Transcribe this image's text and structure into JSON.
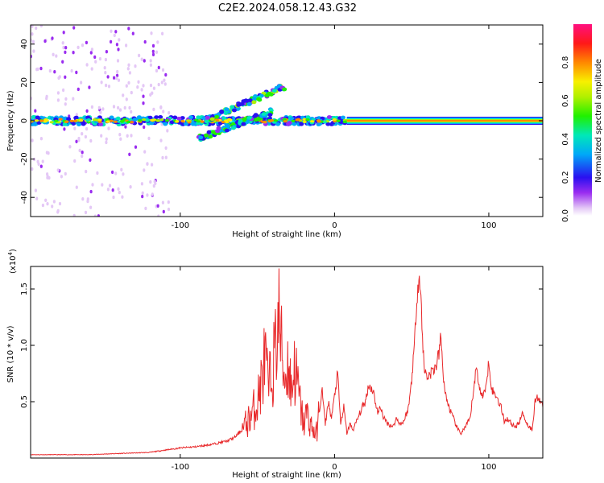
{
  "title": "C2E2.2024.058.12.43.G32",
  "chart_data": [
    {
      "type": "heatmap",
      "xlabel": "Height of straight line (km)",
      "ylabel": "Frequency (Hz)",
      "xlim": [
        -197,
        135
      ],
      "ylim": [
        -50,
        50
      ],
      "xticks": [
        -100,
        0,
        100
      ],
      "xticklabels": [
        "-100",
        "0",
        "100"
      ],
      "yticks": [
        -40,
        -20,
        0,
        20,
        40
      ],
      "yticklabels": [
        "-40",
        "-20",
        "0",
        "20",
        "40"
      ],
      "grid": false,
      "colorbar": {
        "label": "Normalized spectral amplitude",
        "range": [
          0,
          1
        ],
        "ticks": [
          0.0,
          0.2,
          0.4,
          0.6,
          0.8
        ],
        "ticklabels": [
          "0.0",
          "0.2",
          "0.4",
          "0.6",
          "0.8"
        ]
      },
      "features": [
        {
          "name": "main_band",
          "x_range": [
            -197,
            8
          ],
          "freq": 0,
          "amplitude": 0.55
        },
        {
          "name": "upper_branch",
          "x": [
            -85,
            -32
          ],
          "freq": [
            0,
            18
          ],
          "amplitude": 0.45
        },
        {
          "name": "lower_branch",
          "x": [
            -88,
            -40
          ],
          "freq": [
            -9,
            5
          ],
          "amplitude": 0.4
        },
        {
          "name": "mid_band",
          "x_range": [
            -35,
            8
          ],
          "freq": 0,
          "amplitude": 0.6
        },
        {
          "name": "carrier_line",
          "x_range": [
            8,
            135
          ],
          "freq": 0,
          "amplitude": 0.9
        }
      ]
    },
    {
      "type": "line",
      "xlabel": "Height of straight line (km)",
      "ylabel": "SNR (10 * v/v)",
      "yscale_label": "(x10",
      "yscale_exp": "4",
      "yscale_close": ")",
      "xlim": [
        -197,
        135
      ],
      "ylim": [
        0,
        1.7
      ],
      "xticks": [
        -100,
        0,
        100
      ],
      "xticklabels": [
        "-100",
        "0",
        "100"
      ],
      "yticks": [
        0.5,
        1.0,
        1.5
      ],
      "yticklabels": [
        "0.5",
        "1.0",
        "1.5"
      ],
      "grid": false,
      "series_color": "#e8282a",
      "x": [
        -197,
        -180,
        -160,
        -140,
        -120,
        -110,
        -100,
        -90,
        -80,
        -70,
        -65,
        -60,
        -55,
        -50,
        -47,
        -45,
        -43,
        -40,
        -38,
        -36,
        -34,
        -32,
        -30,
        -28,
        -26,
        -24,
        -22,
        -20,
        -18,
        -15,
        -12,
        -10,
        -8,
        -6,
        -4,
        -2,
        0,
        2,
        4,
        6,
        8,
        10,
        12,
        15,
        18,
        20,
        22,
        25,
        28,
        30,
        32,
        35,
        38,
        40,
        43,
        45,
        48,
        50,
        52,
        53,
        54,
        55,
        56,
        58,
        60,
        62,
        64,
        66,
        68,
        69,
        70,
        72,
        75,
        78,
        80,
        82,
        85,
        88,
        90,
        92,
        95,
        98,
        100,
        102,
        105,
        108,
        110,
        112,
        115,
        118,
        120,
        122,
        125,
        128,
        130,
        132,
        135
      ],
      "values": [
        0.03,
        0.03,
        0.03,
        0.04,
        0.05,
        0.07,
        0.09,
        0.1,
        0.12,
        0.15,
        0.18,
        0.25,
        0.35,
        0.5,
        0.7,
        0.9,
        0.6,
        0.8,
        1.0,
        1.25,
        0.9,
        0.7,
        0.85,
        0.6,
        0.8,
        0.65,
        0.45,
        0.3,
        0.4,
        0.28,
        0.2,
        0.4,
        0.6,
        0.3,
        0.5,
        0.35,
        0.55,
        0.75,
        0.3,
        0.45,
        0.22,
        0.3,
        0.25,
        0.35,
        0.45,
        0.5,
        0.65,
        0.6,
        0.4,
        0.45,
        0.35,
        0.3,
        0.28,
        0.35,
        0.3,
        0.33,
        0.45,
        0.7,
        1.05,
        1.35,
        1.55,
        1.6,
        1.4,
        0.8,
        0.72,
        0.75,
        0.78,
        0.82,
        0.95,
        1.1,
        0.8,
        0.55,
        0.42,
        0.32,
        0.25,
        0.22,
        0.28,
        0.35,
        0.6,
        0.8,
        0.55,
        0.6,
        0.88,
        0.6,
        0.55,
        0.45,
        0.33,
        0.35,
        0.3,
        0.28,
        0.33,
        0.4,
        0.3,
        0.25,
        0.5,
        0.55,
        0.45
      ]
    }
  ]
}
